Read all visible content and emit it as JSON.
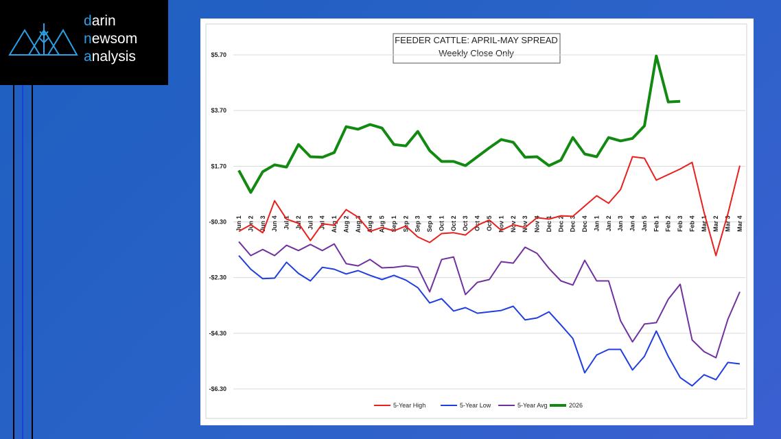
{
  "logo": {
    "lines": [
      "darin",
      "newsom",
      "analysis"
    ]
  },
  "chart_data": {
    "type": "line",
    "title": "FEEDER CATTLE: APRIL-MAY SPREAD",
    "subtitle": "Weekly Close Only",
    "categories": [
      "Jun 1",
      "Jun 2",
      "Jun 3",
      "Jun 4",
      "Jul 1",
      "Jul 2",
      "Jul 3",
      "Jul 4",
      "Aug 1",
      "Aug 2",
      "Aug 3",
      "Aug 4",
      "Aug 5",
      "Sep 1",
      "Sep 2",
      "Sep 3",
      "Sep 4",
      "Oct 1",
      "Oct 2",
      "Oct 3",
      "Oct 4",
      "Oct 5",
      "Nov 1",
      "Nov 2",
      "Nov 3",
      "Nov 4",
      "Dec 1",
      "Dec 2",
      "Dec 3",
      "Dec 4",
      "Jan 1",
      "Jan 2",
      "Jan 3",
      "Jan 4",
      "Jan 5",
      "Feb 1",
      "Feb 2",
      "Feb 3",
      "Feb 4",
      "Mar 1",
      "Mar 2",
      "Mar 3",
      "Mar 4"
    ],
    "ylim": [
      -6.3,
      5.7
    ],
    "yticks": [
      {
        "value": -6.3,
        "label": "-$6.30"
      },
      {
        "value": -4.3,
        "label": "-$4.30"
      },
      {
        "value": -2.3,
        "label": "-$2.30"
      },
      {
        "value": -0.3,
        "label": "-$0.30"
      },
      {
        "value": 1.7,
        "label": "$1.70"
      },
      {
        "value": 3.7,
        "label": "$3.70"
      },
      {
        "value": 5.7,
        "label": "$5.70"
      }
    ],
    "grid": true,
    "legend": "bottom",
    "series": [
      {
        "name": "5-Year High",
        "color": "#e8201c",
        "width": 2,
        "values": [
          -0.64,
          -0.4,
          -0.69,
          0.46,
          -0.2,
          -0.35,
          -0.97,
          -0.37,
          -0.42,
          0.14,
          -0.13,
          -0.64,
          -0.5,
          -0.62,
          -0.45,
          -0.84,
          -1.04,
          -0.72,
          -0.69,
          -0.77,
          -0.42,
          -0.23,
          -0.6,
          -0.4,
          -0.5,
          -0.15,
          -0.2,
          -0.08,
          -0.1,
          0.27,
          0.64,
          0.37,
          0.86,
          2.04,
          1.99,
          1.2,
          1.4,
          1.6,
          1.84,
          0.04,
          -1.51,
          -0.01,
          1.72
        ]
      },
      {
        "name": "5-Year Low",
        "color": "#1f3de0",
        "width": 2,
        "values": [
          -1.51,
          -2.0,
          -2.34,
          -2.32,
          -1.75,
          -2.15,
          -2.42,
          -1.93,
          -2.0,
          -2.17,
          -2.05,
          -2.22,
          -2.37,
          -2.22,
          -2.39,
          -2.66,
          -3.21,
          -3.06,
          -3.5,
          -3.38,
          -3.58,
          -3.53,
          -3.48,
          -3.33,
          -3.82,
          -3.75,
          -3.53,
          -4.0,
          -4.49,
          -5.72,
          -5.08,
          -4.88,
          -4.88,
          -5.62,
          -5.13,
          -4.22,
          -5.13,
          -5.89,
          -6.19,
          -5.79,
          -5.97,
          -5.35,
          -5.4
        ]
      },
      {
        "name": "5-Year Avg",
        "color": "#7030a0",
        "width": 2,
        "values": [
          -1.01,
          -1.51,
          -1.29,
          -1.51,
          -1.14,
          -1.33,
          -1.11,
          -1.33,
          -1.09,
          -1.8,
          -1.88,
          -1.65,
          -1.95,
          -1.93,
          -1.88,
          -1.93,
          -2.81,
          -1.65,
          -1.56,
          -2.91,
          -2.47,
          -2.37,
          -1.73,
          -1.78,
          -1.21,
          -1.43,
          -1.97,
          -2.42,
          -2.57,
          -1.68,
          -2.42,
          -2.42,
          -3.85,
          -4.61,
          -3.97,
          -3.92,
          -3.08,
          -2.54,
          -4.54,
          -4.96,
          -5.18,
          -3.8,
          -2.81
        ]
      },
      {
        "name": "2026",
        "color": "#128a12",
        "width": 4,
        "values": [
          1.55,
          0.76,
          1.5,
          1.75,
          1.67,
          2.48,
          2.04,
          2.02,
          2.19,
          3.12,
          3.03,
          3.2,
          3.07,
          2.48,
          2.43,
          2.95,
          2.26,
          1.87,
          1.87,
          1.72,
          2.04,
          2.36,
          2.66,
          2.56,
          2.02,
          2.04,
          1.72,
          1.92,
          2.73,
          2.14,
          2.04,
          2.73,
          2.61,
          2.7,
          3.15,
          5.66,
          4.01,
          4.03,
          null,
          null,
          null,
          null,
          null
        ]
      }
    ]
  }
}
